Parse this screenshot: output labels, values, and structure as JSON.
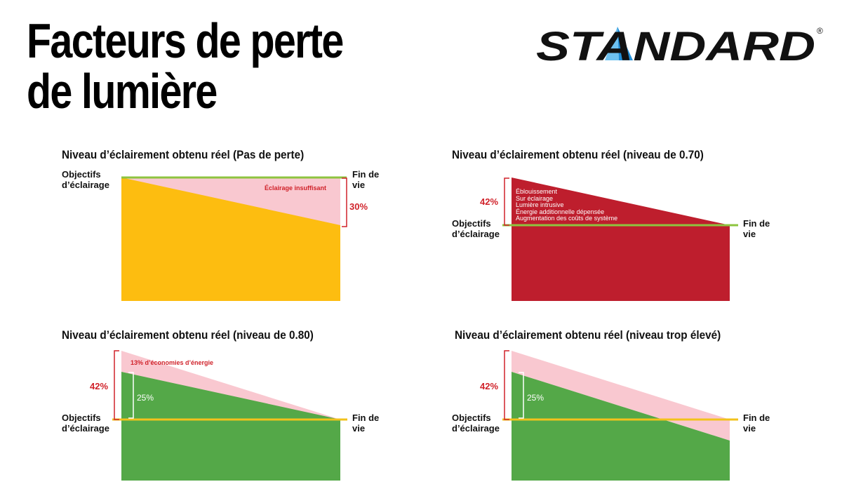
{
  "page": {
    "title_line1": "Facteurs de perte",
    "title_line2": "de lumière",
    "logo_text": "STANDARD",
    "logo_mark": "®"
  },
  "colors": {
    "yellow": "#fdbd10",
    "red": "#be1e2d",
    "green": "#54a848",
    "pink": "#f9c8d0",
    "line_green": "#8dc43f",
    "line_yellow": "#f2c21b",
    "bracket_red": "#d0222a",
    "logo_blue": "#1f8ed8"
  },
  "panels": [
    {
      "title": "Niveau d’éclairement obtenu réel (Pas de perte)",
      "left_label": "Objectifs\nd’éclairage",
      "right_label": "Fin de\nvie",
      "annotation": "Éclairage insuffisant",
      "percent": "30%"
    },
    {
      "title": "Niveau d’éclairement obtenu réel (niveau de 0.70)",
      "left_label": "Objectifs\nd’éclairage",
      "right_label": "Fin de\nvie",
      "percent": "42%",
      "list": [
        "Éblouissement",
        "Sur éclairage",
        "Lumière intrusive",
        "Énergie additionnelle dépensée",
        "Augmentation des coûts de système"
      ]
    },
    {
      "title": "Niveau d’éclairement obtenu réel (niveau de 0.80)",
      "left_label": "Objectifs\nd’éclairage",
      "right_label": "Fin de\nvie",
      "annotation": "13% d’économies d’énergie",
      "percent": "42%",
      "inner_percent": "25%"
    },
    {
      "title": "Niveau d’éclairement obtenu réel (niveau trop élevé)",
      "left_label": "Objectifs\nd’éclairage",
      "right_label": "Fin de\nvie",
      "percent": "42%",
      "inner_percent": "25%"
    }
  ]
}
